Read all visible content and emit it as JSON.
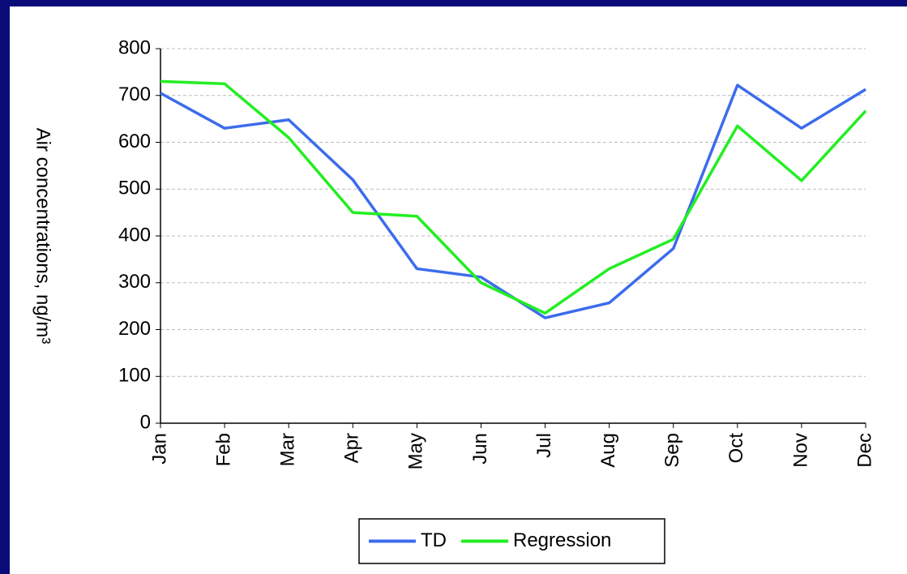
{
  "chart_data": {
    "type": "line",
    "y_label": "Air concentrations, ng/m³",
    "categories": [
      "Jan",
      "Feb",
      "Mar",
      "Apr",
      "May",
      "Jun",
      "Jul",
      "Aug",
      "Sep",
      "Oct",
      "Nov",
      "Dec"
    ],
    "series": [
      {
        "name": "TD",
        "color": "#3c6cec",
        "values": [
          705,
          630,
          648,
          520,
          330,
          312,
          225,
          257,
          373,
          722,
          630,
          713
        ]
      },
      {
        "name": "Regression",
        "color": "#22ee22",
        "values": [
          730,
          725,
          610,
          450,
          442,
          300,
          235,
          330,
          393,
          635,
          518,
          667
        ]
      }
    ],
    "ylim": [
      0,
      800
    ],
    "yticks": [
      0,
      100,
      200,
      300,
      400,
      500,
      600,
      700,
      800
    ],
    "grid": true,
    "legend": "bottom"
  }
}
